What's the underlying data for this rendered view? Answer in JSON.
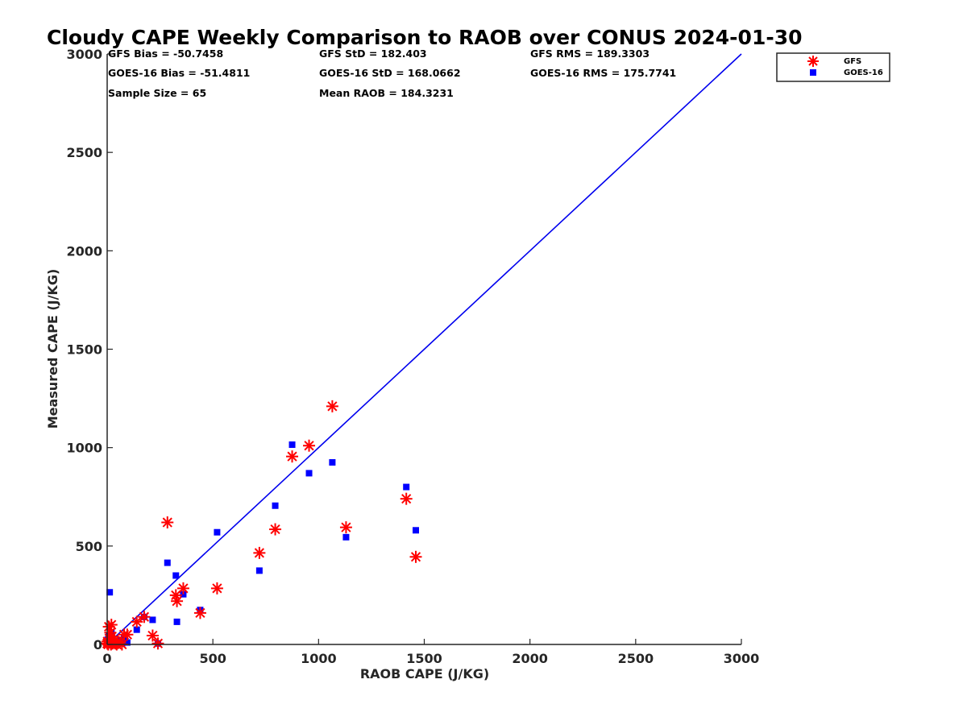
{
  "chart_data": {
    "type": "scatter",
    "title": "Cloudy CAPE Weekly Comparison to RAOB over CONUS 2024-01-30",
    "xlabel": "RAOB CAPE (J/KG)",
    "ylabel": "Measured CAPE (J/KG)",
    "xlim": [
      0,
      3000
    ],
    "ylim": [
      0,
      3000
    ],
    "xticks": [
      "0",
      "500",
      "1000",
      "1500",
      "2000",
      "2500",
      "3000"
    ],
    "yticks": [
      "0",
      "500",
      "1000",
      "1500",
      "2000",
      "2500",
      "3000"
    ],
    "grid": false,
    "legend_position": "outside top-right",
    "reference_line": {
      "from": [
        0,
        0
      ],
      "to": [
        3000,
        3000
      ],
      "color": "#0000ee"
    },
    "annotations": [
      {
        "label": "GFS Bias = -50.7458"
      },
      {
        "label": "GFS StD = 182.403"
      },
      {
        "label": "GFS RMS = 189.3303"
      },
      {
        "label": "GOES-16 Bias = -51.4811"
      },
      {
        "label": "GOES-16 StD = 168.0662"
      },
      {
        "label": "GOES-16 RMS = 175.7741"
      },
      {
        "label": "Sample Size = 65"
      },
      {
        "label": "Mean RAOB = 184.3231"
      }
    ],
    "series": [
      {
        "name": "GFS",
        "marker": "asterisk",
        "color": "#ff0000",
        "points": [
          [
            0,
            5
          ],
          [
            2,
            15
          ],
          [
            5,
            0
          ],
          [
            8,
            90
          ],
          [
            10,
            30
          ],
          [
            12,
            10
          ],
          [
            15,
            60
          ],
          [
            18,
            0
          ],
          [
            20,
            100
          ],
          [
            22,
            40
          ],
          [
            25,
            5
          ],
          [
            30,
            10
          ],
          [
            35,
            20
          ],
          [
            40,
            5
          ],
          [
            45,
            0
          ],
          [
            50,
            15
          ],
          [
            60,
            10
          ],
          [
            70,
            0
          ],
          [
            80,
            50
          ],
          [
            95,
            50
          ],
          [
            140,
            115
          ],
          [
            175,
            140
          ],
          [
            215,
            45
          ],
          [
            240,
            5
          ],
          [
            285,
            620
          ],
          [
            325,
            250
          ],
          [
            330,
            220
          ],
          [
            360,
            285
          ],
          [
            440,
            160
          ],
          [
            520,
            285
          ],
          [
            720,
            465
          ],
          [
            795,
            585
          ],
          [
            875,
            955
          ],
          [
            955,
            1010
          ],
          [
            1065,
            1210
          ],
          [
            1130,
            595
          ],
          [
            1415,
            740
          ],
          [
            1460,
            445
          ]
        ]
      },
      {
        "name": "GOES-16",
        "marker": "square",
        "color": "#0000ff",
        "points": [
          [
            0,
            5
          ],
          [
            3,
            25
          ],
          [
            5,
            0
          ],
          [
            8,
            45
          ],
          [
            10,
            10
          ],
          [
            12,
            265
          ],
          [
            15,
            30
          ],
          [
            18,
            0
          ],
          [
            20,
            60
          ],
          [
            25,
            20
          ],
          [
            30,
            5
          ],
          [
            35,
            15
          ],
          [
            40,
            0
          ],
          [
            50,
            10
          ],
          [
            60,
            20
          ],
          [
            70,
            5
          ],
          [
            80,
            35
          ],
          [
            95,
            10
          ],
          [
            140,
            75
          ],
          [
            175,
            140
          ],
          [
            215,
            125
          ],
          [
            240,
            5
          ],
          [
            285,
            415
          ],
          [
            325,
            350
          ],
          [
            330,
            115
          ],
          [
            360,
            255
          ],
          [
            440,
            175
          ],
          [
            520,
            570
          ],
          [
            720,
            375
          ],
          [
            795,
            705
          ],
          [
            875,
            1015
          ],
          [
            955,
            870
          ],
          [
            1065,
            925
          ],
          [
            1130,
            545
          ],
          [
            1415,
            800
          ],
          [
            1460,
            580
          ]
        ]
      }
    ]
  }
}
